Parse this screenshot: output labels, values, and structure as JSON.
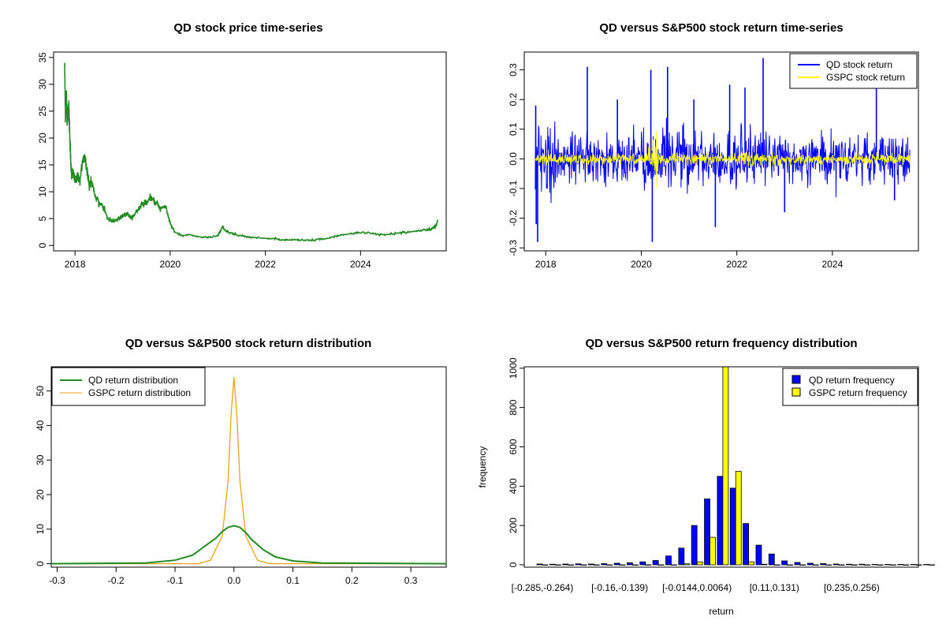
{
  "chart_data": [
    {
      "id": "price",
      "type": "line",
      "title": "QD stock price time-series",
      "xlabel": "",
      "ylabel": "",
      "xlim": [
        2017.55,
        2025.8
      ],
      "ylim": [
        -1,
        36
      ],
      "x_ticks": [
        2018,
        2020,
        2022,
        2024
      ],
      "y_ticks": [
        0,
        5,
        10,
        15,
        20,
        25,
        30,
        35
      ],
      "colors": {
        "line": "#228B22"
      },
      "series": [
        {
          "name": "QD stock price",
          "x": [
            2017.78,
            2017.8,
            2017.82,
            2017.84,
            2017.86,
            2017.88,
            2017.9,
            2017.93,
            2017.96,
            2018.0,
            2018.05,
            2018.1,
            2018.15,
            2018.2,
            2018.25,
            2018.3,
            2018.35,
            2018.4,
            2018.5,
            2018.6,
            2018.7,
            2018.8,
            2018.9,
            2019.0,
            2019.1,
            2019.2,
            2019.3,
            2019.4,
            2019.5,
            2019.6,
            2019.7,
            2019.8,
            2019.9,
            2020.0,
            2020.1,
            2020.25,
            2020.4,
            2020.6,
            2020.8,
            2021.0,
            2021.1,
            2021.15,
            2021.25,
            2021.4,
            2021.6,
            2021.8,
            2022.0,
            2022.2,
            2022.4,
            2022.6,
            2022.8,
            2023.0,
            2023.2,
            2023.4,
            2023.6,
            2023.8,
            2024.0,
            2024.2,
            2024.4,
            2024.6,
            2024.8,
            2025.0,
            2025.2,
            2025.4,
            2025.5,
            2025.58,
            2025.62
          ],
          "y": [
            35,
            24,
            28,
            22,
            27,
            23,
            18,
            13,
            14,
            12,
            13,
            12,
            15,
            17,
            14,
            11,
            12,
            10,
            8,
            7,
            5,
            4.5,
            5,
            5.5,
            6,
            5,
            6.5,
            7.5,
            8,
            9,
            8,
            7,
            7.5,
            4,
            2.5,
            1.8,
            2.0,
            1.6,
            1.5,
            1.8,
            3.5,
            2.8,
            2.4,
            2.0,
            1.6,
            1.5,
            1.3,
            1.2,
            1.0,
            1.1,
            1.0,
            1.0,
            1.2,
            1.5,
            2.0,
            2.2,
            2.4,
            2.3,
            2.0,
            2.1,
            2.3,
            2.5,
            2.7,
            2.9,
            3.1,
            3.6,
            4.8
          ]
        }
      ]
    },
    {
      "id": "returns",
      "type": "line",
      "title": "QD versus S&P500 stock return time-series",
      "xlabel": "",
      "ylabel": "",
      "xlim": [
        2017.55,
        2025.8
      ],
      "ylim": [
        -0.31,
        0.36
      ],
      "x_ticks": [
        2018,
        2020,
        2022,
        2024
      ],
      "y_ticks": [
        -0.3,
        -0.2,
        -0.1,
        0.0,
        0.1,
        0.2,
        0.3
      ],
      "y_tick_labels": [
        "-0.3",
        "-0.2",
        "-0.1",
        "0.0",
        "0.1",
        "0.2",
        "0.3"
      ],
      "colors": {
        "qd": "#0000FF",
        "gspc": "#FFFF00"
      },
      "x_range": [
        2017.78,
        2025.62
      ],
      "spikes": [
        {
          "x": 2017.79,
          "y": 0.18
        },
        {
          "x": 2017.8,
          "y": -0.22
        },
        {
          "x": 2017.83,
          "y": -0.28
        },
        {
          "x": 2018.87,
          "y": 0.31
        },
        {
          "x": 2019.5,
          "y": 0.2
        },
        {
          "x": 2020.2,
          "y": 0.3
        },
        {
          "x": 2020.23,
          "y": -0.28
        },
        {
          "x": 2020.55,
          "y": 0.31
        },
        {
          "x": 2021.1,
          "y": 0.2
        },
        {
          "x": 2021.55,
          "y": -0.23
        },
        {
          "x": 2021.85,
          "y": 0.25
        },
        {
          "x": 2022.17,
          "y": 0.24
        },
        {
          "x": 2022.55,
          "y": 0.34
        },
        {
          "x": 2023.0,
          "y": -0.18
        },
        {
          "x": 2024.92,
          "y": 0.24
        },
        {
          "x": 2025.3,
          "y": -0.14
        }
      ],
      "legend": [
        "QD stock return",
        "GSPC stock return"
      ]
    },
    {
      "id": "density",
      "type": "line",
      "title": "QD versus S&P500 stock return distribution",
      "xlabel": "",
      "ylabel": "",
      "xlim": [
        -0.31,
        0.36
      ],
      "ylim": [
        -1,
        57
      ],
      "x_ticks": [
        -0.3,
        -0.2,
        -0.1,
        0.0,
        0.1,
        0.2,
        0.3
      ],
      "x_tick_labels": [
        "-0.3",
        "-0.2",
        "-0.1",
        "0.0",
        "0.1",
        "0.2",
        "0.3"
      ],
      "y_ticks": [
        0,
        10,
        20,
        30,
        40,
        50
      ],
      "colors": {
        "qd": "#228B22",
        "gspc": "#E8A317"
      },
      "series": [
        {
          "name": "QD return distribution",
          "x": [
            -0.31,
            -0.15,
            -0.1,
            -0.07,
            -0.05,
            -0.03,
            -0.02,
            -0.01,
            0.0,
            0.01,
            0.02,
            0.03,
            0.05,
            0.07,
            0.1,
            0.15,
            0.36
          ],
          "y": [
            0,
            0.2,
            1.0,
            2.5,
            5,
            7.5,
            9.3,
            10.5,
            11,
            10.5,
            9.0,
            7.0,
            4.0,
            2.0,
            0.8,
            0.2,
            0
          ]
        },
        {
          "name": "GSPC return distribution",
          "x": [
            -0.31,
            -0.06,
            -0.04,
            -0.02,
            -0.01,
            -0.005,
            0.0,
            0.005,
            0.01,
            0.02,
            0.04,
            0.06,
            0.36
          ],
          "y": [
            0,
            0,
            1.0,
            8,
            24,
            43,
            54,
            43,
            24,
            8,
            1.0,
            0,
            0
          ]
        }
      ],
      "legend": [
        "QD return distribution",
        "GSPC return distribution"
      ]
    },
    {
      "id": "histogram",
      "type": "bar",
      "title": "QD versus S&P500 return frequency distribution",
      "xlabel": "return",
      "ylabel": "frequency",
      "ylim": [
        0,
        1300
      ],
      "y_ticks": [
        0,
        200,
        400,
        600,
        800,
        1000
      ],
      "colors": {
        "qd": "#0000FF",
        "gspc": "#FFFF00"
      },
      "categories": [
        "[-0.285,-0.264)",
        "b2",
        "b3",
        "b4",
        "b5",
        "b6",
        "[-0.16,-0.139)",
        "b8",
        "b9",
        "b10",
        "b11",
        "b12",
        "[-0.0144,0.0064)",
        "b14",
        "b15",
        "b16",
        "b17",
        "b18",
        "[0.11,0.131)",
        "b20",
        "b21",
        "b22",
        "b23",
        "b24",
        "[0.235,0.256)",
        "b26",
        "b27",
        "b28",
        "b29",
        "b30",
        "b31"
      ],
      "x_tick_indices": [
        0,
        6,
        12,
        18,
        24
      ],
      "series": [
        {
          "name": "QD return frequency",
          "values": [
            4,
            3,
            4,
            5,
            4,
            6,
            8,
            10,
            15,
            22,
            45,
            85,
            200,
            335,
            450,
            390,
            210,
            100,
            55,
            20,
            12,
            8,
            6,
            4,
            3,
            3,
            2,
            2,
            2,
            2,
            2
          ]
        },
        {
          "name": "GSPC return frequency",
          "values": [
            0,
            0,
            0,
            0,
            0,
            0,
            0,
            0,
            0,
            0,
            0,
            5,
            15,
            140,
            1260,
            475,
            15,
            3,
            0,
            0,
            0,
            0,
            0,
            0,
            0,
            0,
            0,
            0,
            0,
            0,
            0
          ]
        }
      ],
      "legend": [
        "QD return frequency",
        "GSPC return frequency"
      ]
    }
  ]
}
